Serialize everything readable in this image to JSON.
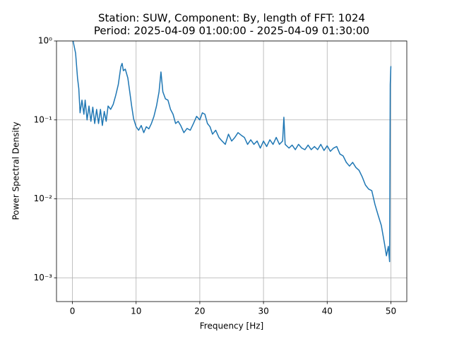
{
  "chart_data": {
    "type": "line",
    "title": "Station: SUW, Component: By, length of FFT: 1024",
    "subtitle": "Period: 2025-04-09 01:00:00 - 2025-04-09 01:30:00",
    "x_label": "Frequency [Hz]",
    "y_label": "Power Spectral Density",
    "log_y": true,
    "grid": true,
    "xlim": [
      -2.5,
      52.5
    ],
    "ylim": [
      0.0005,
      1
    ],
    "xticks": [
      0,
      10,
      20,
      30,
      40,
      50
    ],
    "yticks": [
      {
        "value": 0.001,
        "label": "10⁻³"
      },
      {
        "value": 0.01,
        "label": "10⁻²"
      },
      {
        "value": 0.1,
        "label": "10⁻¹"
      },
      {
        "value": 1,
        "label": "10⁰"
      }
    ],
    "x": [
      0.1,
      0.5,
      0.8,
      1.0,
      1.2,
      1.5,
      1.8,
      2.0,
      2.3,
      2.6,
      2.9,
      3.2,
      3.5,
      3.8,
      4.1,
      4.4,
      4.7,
      5.0,
      5.3,
      5.6,
      6.0,
      6.4,
      6.8,
      7.2,
      7.6,
      7.8,
      8.0,
      8.3,
      8.7,
      9.0,
      9.3,
      9.6,
      10.0,
      10.4,
      10.8,
      11.2,
      11.6,
      12.0,
      12.4,
      12.8,
      13.2,
      13.6,
      13.9,
      14.2,
      14.6,
      15.0,
      15.4,
      15.8,
      16.2,
      16.6,
      17.0,
      17.5,
      18.0,
      18.5,
      19.0,
      19.5,
      20.0,
      20.4,
      20.8,
      21.2,
      21.6,
      22.0,
      22.5,
      23.0,
      23.5,
      24.0,
      24.5,
      25.0,
      25.5,
      26.0,
      26.5,
      27.0,
      27.5,
      28.0,
      28.5,
      29.0,
      29.5,
      30.0,
      30.5,
      31.0,
      31.5,
      32.0,
      32.5,
      33.0,
      33.2,
      33.4,
      34.0,
      34.5,
      35.0,
      35.5,
      36.0,
      36.5,
      37.0,
      37.5,
      38.0,
      38.5,
      39.0,
      39.5,
      40.0,
      40.5,
      41.0,
      41.5,
      42.0,
      42.5,
      43.0,
      43.5,
      44.0,
      44.5,
      45.0,
      45.5,
      46.0,
      46.5,
      47.0,
      47.5,
      48.0,
      48.5,
      49.0,
      49.3,
      49.6,
      49.8,
      49.9,
      50.0
    ],
    "series": [
      {
        "name": "PSD",
        "color": "#1f77b4",
        "values": [
          1.0,
          0.7,
          0.34,
          0.25,
          0.123,
          0.178,
          0.118,
          0.178,
          0.1,
          0.15,
          0.096,
          0.145,
          0.09,
          0.136,
          0.09,
          0.136,
          0.085,
          0.128,
          0.096,
          0.15,
          0.136,
          0.157,
          0.205,
          0.28,
          0.47,
          0.52,
          0.42,
          0.44,
          0.34,
          0.227,
          0.15,
          0.104,
          0.082,
          0.074,
          0.085,
          0.069,
          0.082,
          0.077,
          0.09,
          0.111,
          0.15,
          0.227,
          0.405,
          0.227,
          0.185,
          0.178,
          0.136,
          0.118,
          0.09,
          0.096,
          0.085,
          0.069,
          0.078,
          0.074,
          0.09,
          0.111,
          0.1,
          0.123,
          0.118,
          0.09,
          0.082,
          0.066,
          0.074,
          0.06,
          0.054,
          0.049,
          0.066,
          0.054,
          0.06,
          0.069,
          0.064,
          0.06,
          0.049,
          0.056,
          0.049,
          0.054,
          0.044,
          0.054,
          0.046,
          0.056,
          0.049,
          0.06,
          0.049,
          0.054,
          0.108,
          0.049,
          0.044,
          0.048,
          0.042,
          0.049,
          0.044,
          0.042,
          0.048,
          0.042,
          0.046,
          0.042,
          0.049,
          0.041,
          0.047,
          0.04,
          0.044,
          0.046,
          0.037,
          0.035,
          0.029,
          0.026,
          0.029,
          0.025,
          0.023,
          0.019,
          0.015,
          0.0133,
          0.0127,
          0.0085,
          0.0062,
          0.0046,
          0.0027,
          0.0019,
          0.0025,
          0.0016,
          0.28,
          0.48
        ]
      }
    ]
  }
}
